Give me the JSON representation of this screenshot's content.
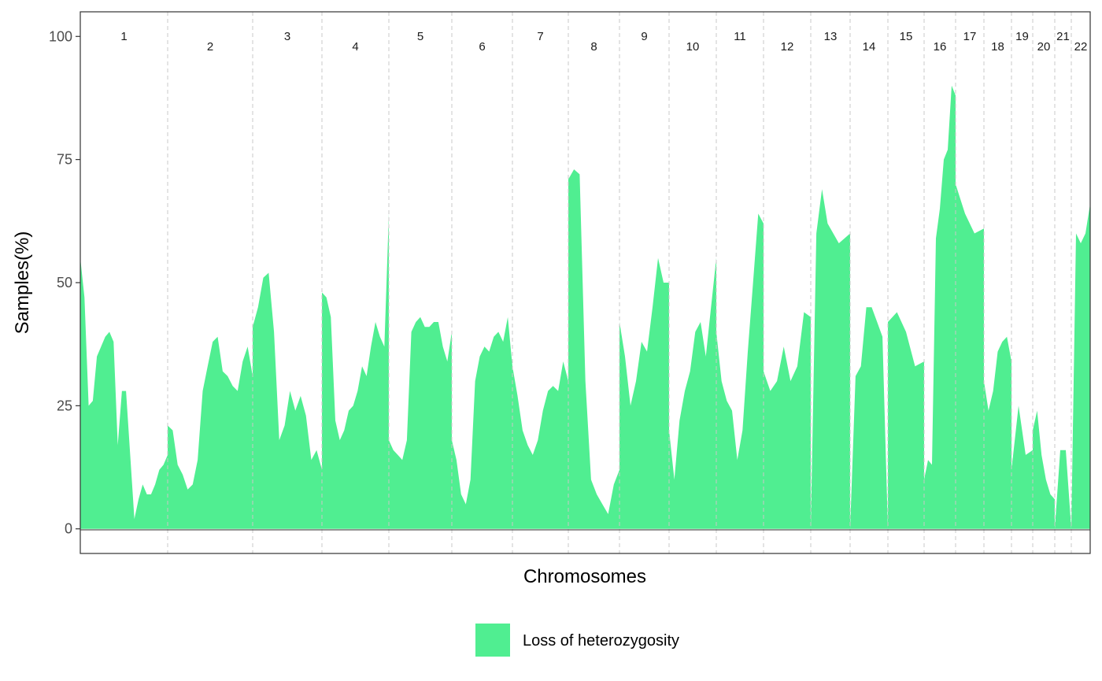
{
  "chart_data": {
    "type": "area",
    "xlabel": "Chromosomes",
    "ylabel": "Samples(%)",
    "ylim": [
      -5,
      105
    ],
    "yticks": [
      0,
      25,
      50,
      75,
      100
    ],
    "grid": false,
    "legend_position": "bottom",
    "legend": [
      {
        "label": "Loss of heterozygosity",
        "color": "#50ee91"
      }
    ],
    "chromosomes": [
      "1",
      "2",
      "3",
      "4",
      "5",
      "6",
      "7",
      "8",
      "9",
      "10",
      "11",
      "12",
      "13",
      "14",
      "15",
      "16",
      "17",
      "18",
      "19",
      "20",
      "21",
      "22"
    ],
    "series": [
      {
        "name": "Loss of heterozygosity",
        "color": "#50ee91",
        "profiles": {
          "1": [
            55,
            47,
            25,
            26,
            35,
            37,
            39,
            40,
            38,
            17,
            28,
            28,
            15,
            2,
            6,
            9,
            7,
            7,
            9,
            12,
            13,
            15
          ],
          "2": [
            21,
            20,
            13,
            11,
            8,
            9,
            14,
            28,
            33,
            38,
            39,
            32,
            31,
            29,
            28,
            34,
            37,
            31
          ],
          "3": [
            41,
            45,
            51,
            52,
            40,
            18,
            21,
            28,
            24,
            27,
            23,
            14,
            16,
            12
          ],
          "4": [
            48,
            47,
            43,
            22,
            18,
            20,
            24,
            25,
            28,
            33,
            31,
            37,
            42,
            39,
            37,
            64
          ],
          "5": [
            18,
            16,
            15,
            14,
            18,
            40,
            42,
            43,
            41,
            41,
            42,
            42,
            37,
            34,
            40
          ],
          "6": [
            18,
            14,
            7,
            5,
            10,
            30,
            35,
            37,
            36,
            39,
            40,
            38,
            43,
            33
          ],
          "7": [
            33,
            27,
            20,
            17,
            15,
            18,
            24,
            28,
            29,
            28,
            34,
            30
          ],
          "8": [
            71,
            73,
            72,
            30,
            10,
            7,
            5,
            3,
            9,
            12
          ],
          "9": [
            42,
            35,
            25,
            30,
            38,
            36,
            45,
            55,
            50,
            50
          ],
          "10": [
            20,
            10,
            22,
            28,
            32,
            40,
            42,
            35,
            45,
            55
          ],
          "11": [
            40,
            30,
            26,
            24,
            14,
            20,
            36,
            50,
            64,
            62
          ],
          "12": [
            32,
            28,
            30,
            37,
            30,
            33,
            44,
            43
          ],
          "13": [
            0,
            60,
            69,
            62,
            60,
            58,
            59,
            60
          ],
          "14": [
            0,
            31,
            33,
            45,
            45,
            42,
            39,
            0
          ],
          "15": [
            42,
            44,
            40,
            33,
            34
          ],
          "16": [
            10,
            14,
            13,
            59,
            65,
            75,
            77,
            90,
            88
          ],
          "17": [
            70,
            64,
            60,
            61
          ],
          "18": [
            30,
            24,
            28,
            36,
            38,
            39,
            34
          ],
          "19": [
            12,
            25,
            15,
            16
          ],
          "20": [
            20,
            24,
            15,
            10,
            7,
            6
          ],
          "21": [
            0,
            16,
            16,
            0
          ],
          "22": [
            0,
            60,
            58,
            60,
            66
          ]
        }
      }
    ]
  }
}
